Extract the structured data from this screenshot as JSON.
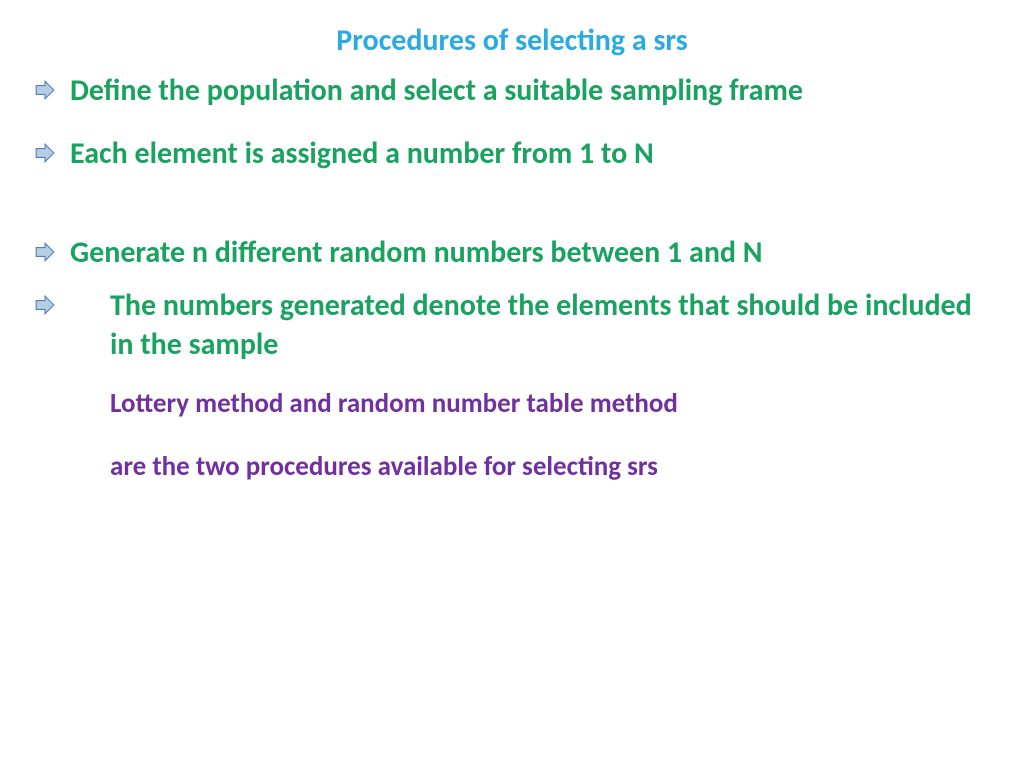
{
  "title": {
    "text": "Procedures of selecting a srs",
    "color": "#29abe2",
    "fontsize": 30
  },
  "bullets": [
    {
      "text": "Define the population and select a suitable sampling frame"
    },
    {
      "text": "Each element is assigned a number from 1 to N"
    },
    {
      "text": "Generate n different random numbers between 1 and N"
    },
    {
      "text": "The numbers generated denote the elements that should be included in the sample",
      "indent": true
    }
  ],
  "bullet_style": {
    "color": "#1aa260",
    "fontsize": 30,
    "arrow_fill": "#b8cce4",
    "arrow_stroke": "#4f81bd"
  },
  "footer": {
    "line1": "Lottery method and random number table method",
    "line2": "are the two procedures available  for selecting srs",
    "color": "#7030a0",
    "fontsize": 27
  },
  "spacing": {
    "gap_after_b1": 24,
    "gap_after_b2": 60,
    "gap_after_b3": 14,
    "gap_after_b4": 22
  }
}
